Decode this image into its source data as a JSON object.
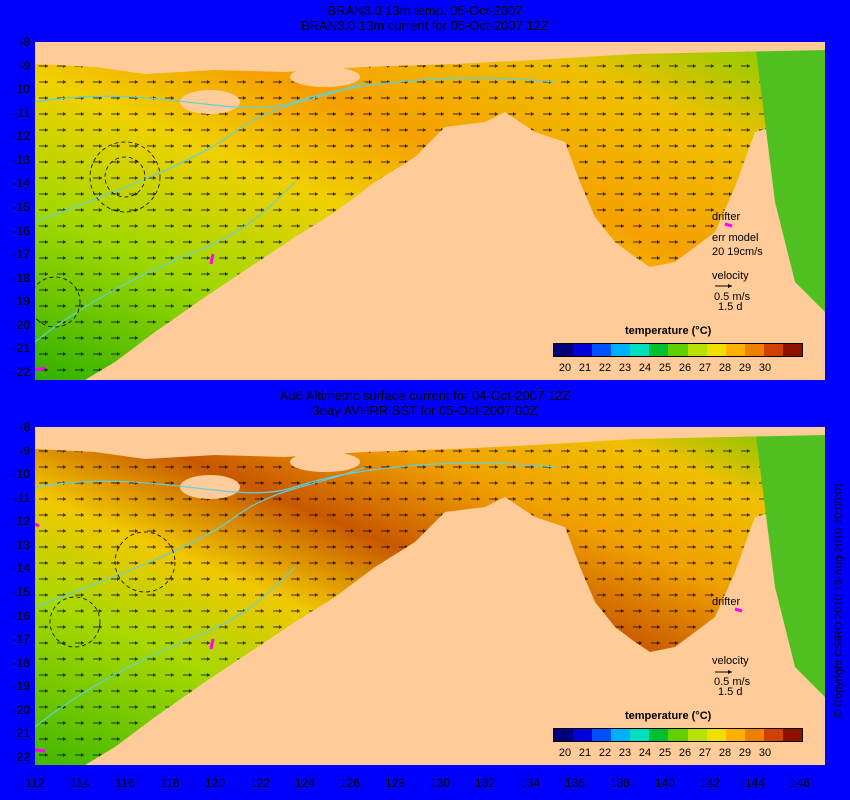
{
  "top_panel": {
    "title_line1": "BRAN3.0 13m temp. 05-Oct-2007",
    "title_line2": "BRAN3.0 13m current for 05-Oct-2007 12Z",
    "drifter_label": "drifter",
    "err_label": "err model",
    "err_value": "20 19cm/s",
    "velocity_label": "velocity",
    "velocity_scale": "0.5 m/s",
    "velocity_time": "1.5 d",
    "legend_title": "temperature (°C)"
  },
  "bottom_panel": {
    "title_line1": "Au6 Altimetric surface current for 04-Oct-2007 12Z",
    "title_line2": "3day AVHRR SST for 05-Oct-2007 00Z",
    "drifter_label": "drifter",
    "velocity_label": "velocity",
    "velocity_scale": "0.5 m/s",
    "velocity_time": "1.5 d",
    "legend_title": "temperature (°C)"
  },
  "colorbar": {
    "ticks": [
      "20",
      "21",
      "22",
      "23",
      "24",
      "25",
      "26",
      "27",
      "28",
      "29",
      "30"
    ],
    "colors": [
      "#00007a",
      "#0000d8",
      "#0050ff",
      "#00b0ff",
      "#00e0c0",
      "#00c030",
      "#60d000",
      "#b8e000",
      "#f0e000",
      "#ffb000",
      "#f08000",
      "#d04000",
      "#901000"
    ]
  },
  "y_ticks": [
    "-8",
    "-9",
    "-10",
    "-11",
    "-12",
    "-13",
    "-14",
    "-15",
    "-16",
    "-17",
    "-18",
    "-19",
    "-20",
    "-21",
    "-22"
  ],
  "x_ticks": [
    "112",
    "114",
    "116",
    "118",
    "120",
    "122",
    "124",
    "126",
    "128",
    "130",
    "132",
    "134",
    "136",
    "138",
    "140",
    "142",
    "144",
    "146"
  ],
  "copyright": "© Copyright CSIRO 2010   13-Aug-2010 20:05:01",
  "colors": {
    "land": "#ffcc99",
    "warm_sea": "#f5a800",
    "mid_sea": "#e8d800",
    "cool_sea": "#40c000",
    "hot_sea": "#c05000",
    "contour": "#60d0e0",
    "drifter": "#ff00ff"
  }
}
